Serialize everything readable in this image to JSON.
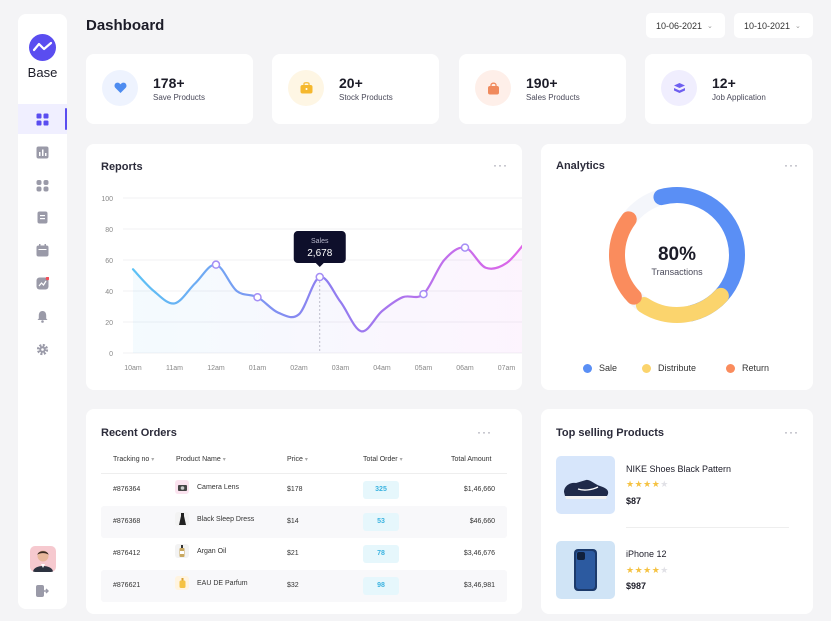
{
  "brand": {
    "name": "Base"
  },
  "page": {
    "title": "Dashboard"
  },
  "date_range": {
    "start": "10-06-2021",
    "end": "10-10-2021"
  },
  "nav": [
    {
      "icon": "dashboard-icon",
      "active": true
    },
    {
      "icon": "bar-chart-icon",
      "active": false
    },
    {
      "icon": "grid-icon",
      "active": false
    },
    {
      "icon": "document-icon",
      "active": false
    },
    {
      "icon": "calendar-icon",
      "active": false
    },
    {
      "icon": "analytics-icon",
      "active": false
    },
    {
      "icon": "bell-icon",
      "active": false
    },
    {
      "icon": "gear-icon",
      "active": false
    }
  ],
  "stats": [
    {
      "value": "178+",
      "label": "Save Products",
      "icon": "heart-icon",
      "color": "#4e8cf0",
      "bg": "#eef3fe"
    },
    {
      "value": "20+",
      "label": "Stock Products",
      "icon": "bag-icon",
      "color": "#f5b82e",
      "bg": "#fef6e4"
    },
    {
      "value": "190+",
      "label": "Sales Products",
      "icon": "shopping-bag-icon",
      "color": "#f08a5d",
      "bg": "#feefe9"
    },
    {
      "value": "12+",
      "label": "Job Application",
      "icon": "layers-icon",
      "color": "#6e5ff0",
      "bg": "#f0eefe"
    }
  ],
  "reports": {
    "title": "Reports",
    "menu": "···",
    "tooltip": {
      "label": "Sales",
      "value": "2,678"
    }
  },
  "chart_data": {
    "type": "line",
    "categories": [
      "10am",
      "11am",
      "12am",
      "01am",
      "02am",
      "03am",
      "04am",
      "05am",
      "06am",
      "07am"
    ],
    "yticks": [
      0,
      20,
      40,
      60,
      80,
      100
    ],
    "ylim": [
      0,
      100
    ],
    "x": [
      0,
      0.5,
      1,
      1.5,
      2,
      2.5,
      3,
      3.5,
      4,
      4.5,
      5,
      5.5,
      6,
      6.5,
      7,
      7.5,
      8,
      8.5,
      9,
      9.5
    ],
    "values": [
      54,
      40,
      32,
      45,
      57,
      40,
      36,
      26,
      25,
      49,
      33,
      14,
      27,
      36,
      38,
      60,
      68,
      55,
      58,
      73
    ],
    "markers": [
      4,
      6,
      9,
      14,
      16
    ],
    "highlight_index": 9,
    "colors": {
      "start": "#5cc2f5",
      "mid": "#8f7df0",
      "end": "#e265e8"
    }
  },
  "analytics": {
    "title": "Analytics",
    "menu": "···",
    "percent": "80%",
    "caption": "Transactions",
    "segments": [
      {
        "name": "Sale",
        "value": 45,
        "color": "#5a8ff5"
      },
      {
        "name": "Distribute",
        "value": 20,
        "color": "#fbd46d"
      },
      {
        "name": "Return",
        "value": 20,
        "color": "#fa8c5d"
      }
    ]
  },
  "orders": {
    "title": "Recent Orders",
    "menu": "···",
    "columns": [
      "Tracking no",
      "Product Name",
      "Price",
      "Total Order",
      "Total Amount"
    ],
    "rows": [
      {
        "tracking": "#876364",
        "product": "Camera Lens",
        "price": "$178",
        "total_order": "325",
        "amount": "$1,46,660",
        "thumb_bg": "#fbe3ef"
      },
      {
        "tracking": "#876368",
        "product": "Black Sleep Dress",
        "price": "$14",
        "total_order": "53",
        "amount": "$46,660",
        "thumb_bg": "#f3f3f3"
      },
      {
        "tracking": "#876412",
        "product": "Argan Oil",
        "price": "$21",
        "total_order": "78",
        "amount": "$3,46,676",
        "thumb_bg": "#f3f3f3"
      },
      {
        "tracking": "#876621",
        "product": "EAU DE Parfum",
        "price": "$32",
        "total_order": "98",
        "amount": "$3,46,981",
        "thumb_bg": "#fff4e0"
      }
    ]
  },
  "top_selling": {
    "title": "Top selling Products",
    "menu": "···",
    "items": [
      {
        "name": "NIKE Shoes Black Pattern",
        "price": "$87",
        "rating": 4,
        "img_bg": "#d7e6fb"
      },
      {
        "name": "iPhone 12",
        "price": "$987",
        "rating": 4,
        "img_bg": "#d0e4f6"
      }
    ]
  }
}
